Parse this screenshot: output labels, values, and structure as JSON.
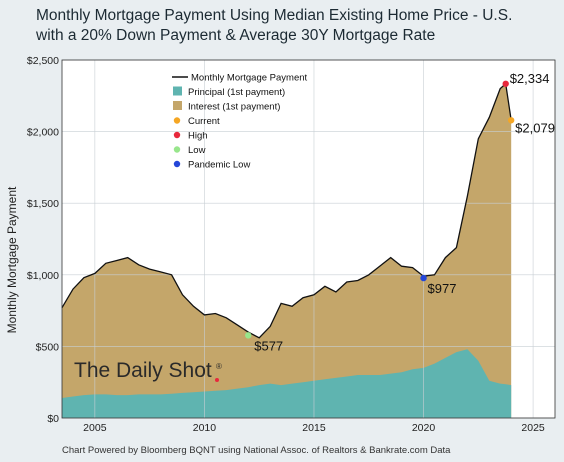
{
  "title_line1": "Monthly Mortgage Payment Using Median Existing Home Price - U.S.",
  "title_line2": "with a 20% Down Payment & Average 30Y Mortgage Rate",
  "footer": "Chart Powered by Bloomberg BQNT using National Assoc. of Realtors & Bankrate.com Data",
  "watermark": "The Daily Shot",
  "watermark_reg": "®",
  "colors": {
    "principal": "#5fb4b0",
    "interest": "#c4a66a",
    "line": "#111111",
    "current": "#f5a623",
    "high": "#e8283c",
    "low": "#98e68c",
    "pandemic_low": "#2446d8",
    "background": "#e9eef1"
  },
  "chart_data": {
    "type": "area",
    "ylabel": "Monthly Mortgage Payment",
    "ylim": [
      0,
      2500
    ],
    "xlim": [
      2003.5,
      2026
    ],
    "y_ticks": [
      0,
      500,
      1000,
      1500,
      2000,
      2500
    ],
    "y_tick_labels": [
      "$0",
      "$500",
      "$1,000",
      "$1,500",
      "$2,000",
      "$2,500"
    ],
    "x_ticks": [
      2005,
      2010,
      2015,
      2020,
      2025
    ],
    "x_tick_labels": [
      "2005",
      "2010",
      "2015",
      "2020",
      "2025"
    ],
    "grid": true,
    "legend_position": "top-left",
    "legend": [
      {
        "label": "Monthly Mortgage Payment",
        "kind": "line",
        "color_key": "line"
      },
      {
        "label": "Principal (1st payment)",
        "kind": "square",
        "color_key": "principal"
      },
      {
        "label": "Interest (1st payment)",
        "kind": "square",
        "color_key": "interest"
      },
      {
        "label": "Current",
        "kind": "dot",
        "color_key": "current"
      },
      {
        "label": "High",
        "kind": "dot",
        "color_key": "high"
      },
      {
        "label": "Low",
        "kind": "dot",
        "color_key": "low"
      },
      {
        "label": "Pandemic Low",
        "kind": "dot",
        "color_key": "pandemic_low"
      }
    ],
    "series": [
      {
        "name": "Monthly Mortgage Payment",
        "x": [
          2003.5,
          2004.0,
          2004.5,
          2005.0,
          2005.5,
          2006.0,
          2006.5,
          2007.0,
          2007.5,
          2008.0,
          2008.5,
          2009.0,
          2009.5,
          2010.0,
          2010.5,
          2011.0,
          2011.5,
          2012.0,
          2012.5,
          2013.0,
          2013.5,
          2014.0,
          2014.5,
          2015.0,
          2015.5,
          2016.0,
          2016.5,
          2017.0,
          2017.5,
          2018.0,
          2018.5,
          2019.0,
          2019.5,
          2020.0,
          2020.5,
          2021.0,
          2021.5,
          2022.0,
          2022.5,
          2023.0,
          2023.5,
          2023.75,
          2024.0
        ],
        "values": [
          770,
          900,
          980,
          1010,
          1080,
          1100,
          1120,
          1070,
          1040,
          1020,
          1000,
          860,
          780,
          720,
          730,
          700,
          650,
          600,
          560,
          640,
          800,
          780,
          840,
          860,
          920,
          880,
          950,
          960,
          1000,
          1060,
          1120,
          1060,
          1050,
          990,
          1000,
          1120,
          1190,
          1550,
          1950,
          2100,
          2300,
          2334,
          2079
        ]
      },
      {
        "name": "Principal (1st payment)",
        "x": [
          2003.5,
          2004.0,
          2004.5,
          2005.0,
          2005.5,
          2006.0,
          2006.5,
          2007.0,
          2007.5,
          2008.0,
          2008.5,
          2009.0,
          2009.5,
          2010.0,
          2010.5,
          2011.0,
          2011.5,
          2012.0,
          2012.5,
          2013.0,
          2013.5,
          2014.0,
          2014.5,
          2015.0,
          2015.5,
          2016.0,
          2016.5,
          2017.0,
          2017.5,
          2018.0,
          2018.5,
          2019.0,
          2019.5,
          2020.0,
          2020.5,
          2021.0,
          2021.5,
          2022.0,
          2022.5,
          2023.0,
          2023.5,
          2023.75,
          2024.0
        ],
        "values": [
          140,
          150,
          160,
          165,
          165,
          160,
          160,
          165,
          165,
          165,
          170,
          175,
          180,
          185,
          190,
          195,
          205,
          215,
          230,
          240,
          230,
          240,
          250,
          260,
          270,
          280,
          290,
          300,
          300,
          300,
          310,
          320,
          340,
          350,
          380,
          420,
          460,
          480,
          400,
          260,
          240,
          235,
          230
        ]
      }
    ],
    "annotations": [
      {
        "label": "$2,334",
        "x": 2023.75,
        "y": 2334,
        "marker": "high"
      },
      {
        "label": "$2,079",
        "x": 2024.0,
        "y": 2079,
        "marker": "current"
      },
      {
        "label": "$977",
        "x": 2020.0,
        "y": 977,
        "marker": "pandemic_low"
      },
      {
        "label": "$577",
        "x": 2012.0,
        "y": 577,
        "marker": "low"
      }
    ]
  }
}
